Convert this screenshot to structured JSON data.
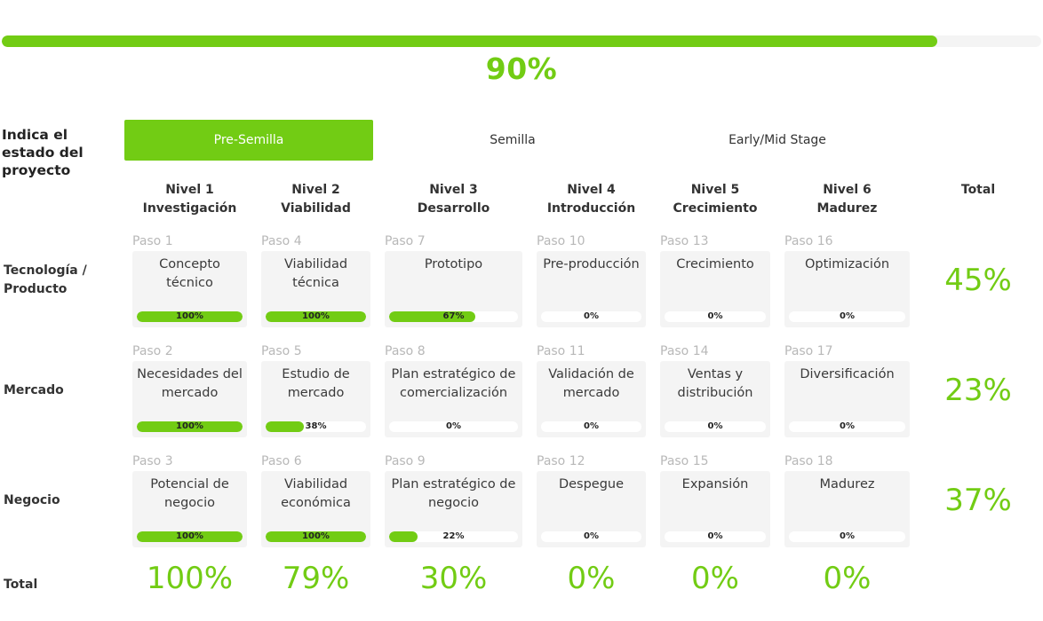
{
  "overall": {
    "progress": 0.9,
    "label": "90%"
  },
  "stage": {
    "title": "Indica el estado del proyecto",
    "options": [
      "Pre-Semilla",
      "Semilla",
      "Early/Mid Stage"
    ],
    "selected": "Pre-Semilla"
  },
  "levels": [
    {
      "line1": "Nivel 1",
      "line2": "Investigación"
    },
    {
      "line1": "Nivel 2",
      "line2": "Viabilidad"
    },
    {
      "line1": "Nivel 3",
      "line2": "Desarrollo"
    },
    {
      "line1": "Nivel 4",
      "line2": "Introducción"
    },
    {
      "line1": "Nivel 5",
      "line2": "Crecimiento"
    },
    {
      "line1": "Nivel 6",
      "line2": "Madurez"
    }
  ],
  "total_header": "Total",
  "rows": [
    {
      "label": "Tecnología / Producto",
      "total": "45%",
      "cells": [
        {
          "paso": "Paso 1",
          "title": "Concepto técnico",
          "progress": 1.0,
          "pct_label": "100%"
        },
        {
          "paso": "Paso 4",
          "title": "Viabilidad técnica",
          "progress": 1.0,
          "pct_label": "100%"
        },
        {
          "paso": "Paso 7",
          "title": "Prototipo",
          "progress": 0.67,
          "pct_label": "67%"
        },
        {
          "paso": "Paso 10",
          "title": "Pre-producción",
          "progress": 0,
          "pct_label": "0%"
        },
        {
          "paso": "Paso 13",
          "title": "Crecimiento",
          "progress": 0,
          "pct_label": "0%"
        },
        {
          "paso": "Paso 16",
          "title": "Optimización",
          "progress": 0,
          "pct_label": "0%"
        }
      ]
    },
    {
      "label": "Mercado",
      "total": "23%",
      "cells": [
        {
          "paso": "Paso 2",
          "title": "Necesidades del mercado",
          "progress": 1.0,
          "pct_label": "100%"
        },
        {
          "paso": "Paso 5",
          "title": "Estudio de mercado",
          "progress": 0.38,
          "pct_label": "38%"
        },
        {
          "paso": "Paso 8",
          "title": "Plan estratégico de comercialización",
          "progress": 0,
          "pct_label": "0%"
        },
        {
          "paso": "Paso 11",
          "title": "Validación de mercado",
          "progress": 0,
          "pct_label": "0%"
        },
        {
          "paso": "Paso 14",
          "title": "Ventas y distribución",
          "progress": 0,
          "pct_label": "0%"
        },
        {
          "paso": "Paso 17",
          "title": "Diversificación",
          "progress": 0,
          "pct_label": "0%"
        }
      ]
    },
    {
      "label": "Negocio",
      "total": "37%",
      "cells": [
        {
          "paso": "Paso 3",
          "title": "Potencial de negocio",
          "progress": 1.0,
          "pct_label": "100%"
        },
        {
          "paso": "Paso 6",
          "title": "Viabilidad económica",
          "progress": 1.0,
          "pct_label": "100%"
        },
        {
          "paso": "Paso 9",
          "title": "Plan estratégico de negocio",
          "progress": 0.22,
          "pct_label": "22%"
        },
        {
          "paso": "Paso 12",
          "title": "Despegue",
          "progress": 0,
          "pct_label": "0%"
        },
        {
          "paso": "Paso 15",
          "title": "Expansión",
          "progress": 0,
          "pct_label": "0%"
        },
        {
          "paso": "Paso 18",
          "title": "Madurez",
          "progress": 0,
          "pct_label": "0%"
        }
      ]
    }
  ],
  "totals_row": {
    "label": "Total",
    "values": [
      "100%",
      "79%",
      "30%",
      "0%",
      "0%",
      "0%"
    ]
  },
  "colors": {
    "accent": "#72cc14",
    "cell_bg": "#f4f4f4",
    "muted": "#b8b8b8"
  }
}
